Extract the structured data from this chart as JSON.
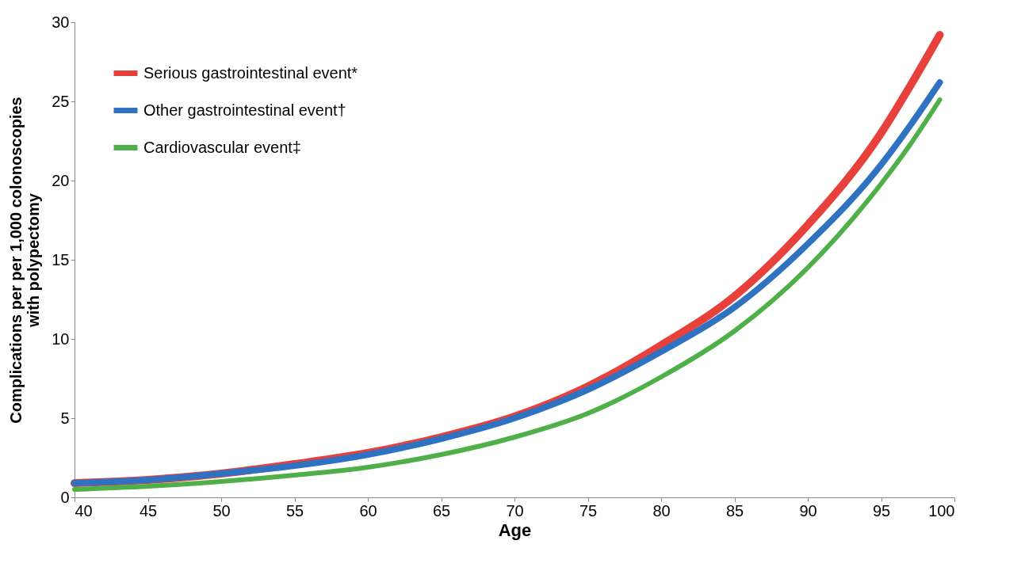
{
  "chart_data": {
    "type": "line",
    "xlabel": "Age",
    "ylabel": "Complications per per 1,000 colonoscopies with polypectomy",
    "x": [
      40,
      45,
      50,
      55,
      60,
      65,
      70,
      75,
      80,
      85,
      90,
      95,
      97,
      99
    ],
    "series": [
      {
        "name": "Serious gastrointestinal  event*",
        "color": "#e8413c",
        "values": [
          0.9,
          1.1,
          1.5,
          2.1,
          2.8,
          3.8,
          5.1,
          7.0,
          9.6,
          12.7,
          17.2,
          23.0,
          26.0,
          29.2
        ]
      },
      {
        "name": "Other gastrointestinal  event†",
        "color": "#2f72c2",
        "values": [
          0.9,
          1.1,
          1.5,
          2.0,
          2.7,
          3.7,
          5.0,
          6.8,
          9.2,
          12.0,
          16.0,
          21.0,
          23.5,
          26.2
        ]
      },
      {
        "name": "Cardiovascular event‡",
        "color": "#4fb04a",
        "values": [
          0.5,
          0.7,
          1.0,
          1.4,
          1.9,
          2.7,
          3.8,
          5.3,
          7.6,
          10.5,
          14.5,
          19.8,
          22.3,
          25.1
        ]
      }
    ],
    "xlim": [
      40,
      100
    ],
    "xticks": [
      40,
      45,
      50,
      55,
      60,
      65,
      70,
      75,
      80,
      85,
      90,
      95,
      100
    ],
    "ylim": [
      0,
      30
    ],
    "yticks": [
      0,
      5,
      10,
      15,
      20,
      25,
      30
    ],
    "grid": false,
    "legend": "top left",
    "marker": "none",
    "line_style": "solid"
  }
}
